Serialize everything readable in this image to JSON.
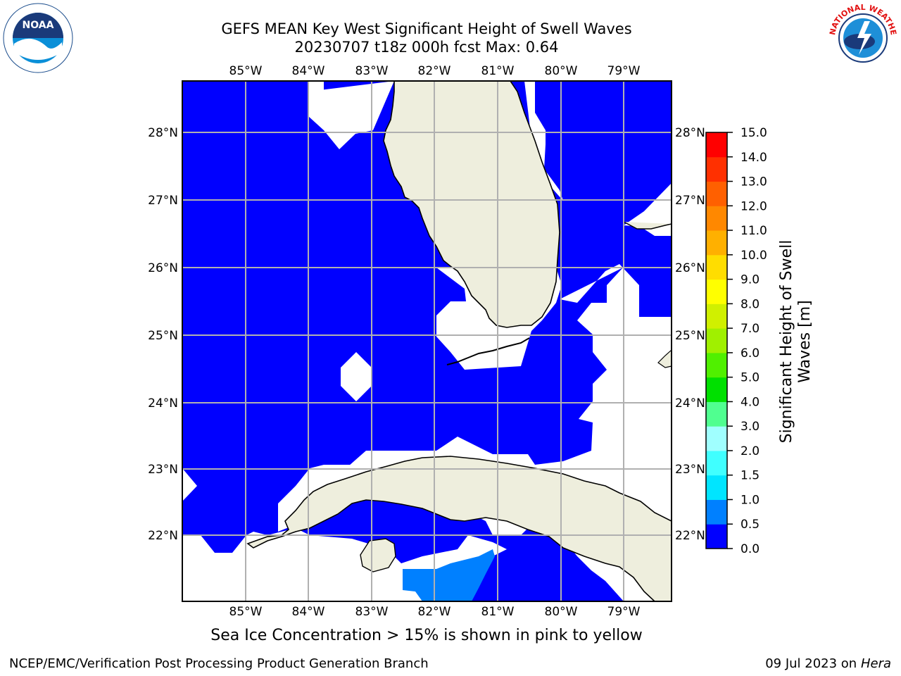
{
  "title_line1": "GEFS MEAN Key West Significant Height of Swell Waves",
  "title_line2": "20230707 t18z 000h fcst   Max: 0.64",
  "lon_labels": [
    "85°W",
    "84°W",
    "83°W",
    "82°W",
    "81°W",
    "80°W",
    "79°W"
  ],
  "lat_labels": [
    "28°N",
    "27°N",
    "26°N",
    "25°N",
    "24°N",
    "23°N",
    "22°N"
  ],
  "colorbar": {
    "label_line1": "Significant Height of Swell",
    "label_line2": "Waves [m]",
    "ticks": [
      "0.0",
      "0.5",
      "1.0",
      "1.5",
      "2.0",
      "3.0",
      "4.0",
      "5.0",
      "6.0",
      "7.0",
      "8.0",
      "9.0",
      "10.0",
      "11.0",
      "12.0",
      "13.0",
      "14.0",
      "15.0"
    ],
    "colors": [
      "#0000ff",
      "#0080ff",
      "#00e5ff",
      "#40ffff",
      "#a0ffff",
      "#50ff90",
      "#00e000",
      "#50f000",
      "#a0f000",
      "#d0f000",
      "#ffff00",
      "#ffdd00",
      "#ffb000",
      "#ff8800",
      "#ff6000",
      "#ff3000",
      "#ff0000"
    ]
  },
  "ice_note": "Sea Ice Concentration > 15% is shown in pink to yellow",
  "footer_left": "NCEP/EMC/Verification Post Processing Product Generation Branch",
  "footer_date": "09 Jul 2023 on ",
  "footer_machine": "Hera",
  "logos": {
    "noaa_text": "NOAA",
    "nws_text": "NATIONAL WEATHER SERVICE"
  },
  "colors": {
    "water": "#0000ff",
    "swell_light": "#0080ff",
    "land": "#eeeedd",
    "grid": "#b0b0b0"
  }
}
